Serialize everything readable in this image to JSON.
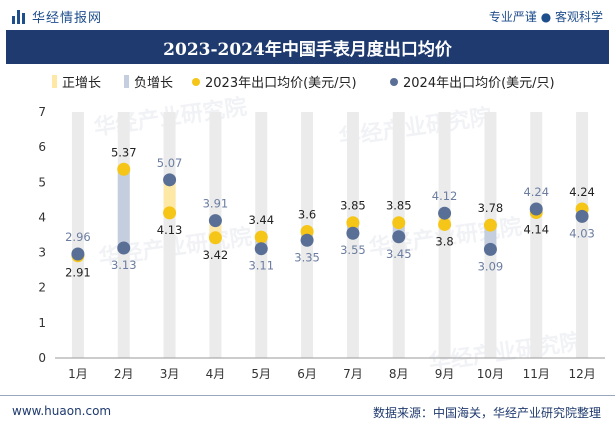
{
  "header": {
    "logo_text": "华经情报网",
    "slogan": "专业严谨 ● 客观科学"
  },
  "footer": {
    "website": "www.huaon.com",
    "source": "数据来源：中国海关，华经产业研究院整理"
  },
  "watermark_text": "华经产业研究院",
  "colors": {
    "brand": "#1f3a6e",
    "up_bar": "#fde8a6",
    "down_bar": "#c5cede",
    "grid_bar": "#ebebeb",
    "s2023": "#f5c518",
    "s2024": "#5a6f95",
    "label_2023": "#222222",
    "label_2024": "#6b7da0"
  },
  "chart_data": {
    "type": "line",
    "title": "2023-2024年中国手表月度出口均价",
    "xlabel": "",
    "ylabel": "",
    "ylim": [
      0,
      7
    ],
    "yticks": [
      0,
      1,
      2,
      3,
      4,
      5,
      6,
      7
    ],
    "grid": false,
    "legend_position": "top",
    "categories": [
      "1月",
      "2月",
      "3月",
      "4月",
      "5月",
      "6月",
      "7月",
      "8月",
      "9月",
      "10月",
      "11月",
      "12月"
    ],
    "series": [
      {
        "name": "2023年出口均价(美元/只)",
        "values": [
          2.91,
          5.37,
          4.13,
          3.42,
          3.44,
          3.6,
          3.85,
          3.85,
          3.8,
          3.78,
          4.14,
          4.24
        ]
      },
      {
        "name": "2024年出口均价(美元/只)",
        "values": [
          2.96,
          3.13,
          5.07,
          3.91,
          3.11,
          3.35,
          3.55,
          3.45,
          4.12,
          3.09,
          4.24,
          4.03
        ]
      }
    ],
    "legend_items": [
      {
        "name": "正增长",
        "kind": "bar-up"
      },
      {
        "name": "负增长",
        "kind": "bar-down"
      },
      {
        "name": "2023年出口均价(美元/只)",
        "kind": "dot-2023"
      },
      {
        "name": "2024年出口均价(美元/只)",
        "kind": "dot-2024"
      }
    ]
  }
}
